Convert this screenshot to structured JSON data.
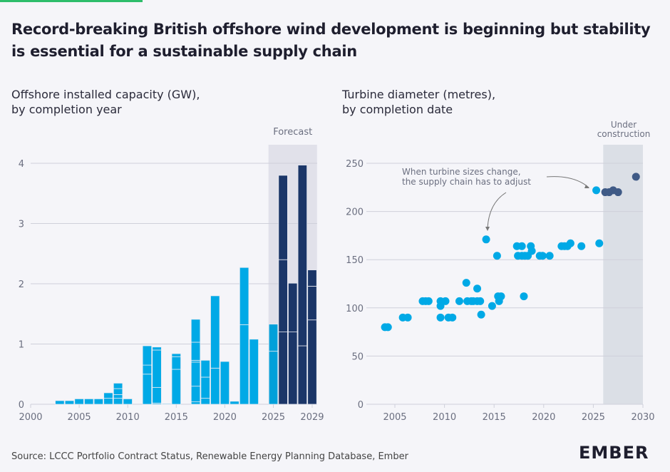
{
  "title": "Record-breaking British offshore wind development is beginning but stability is essential for a sustainable supply chain",
  "source": "Source: LCCC Portfolio Contract Status, Renewable Energy Planning Database, Ember",
  "logo": "EMBER",
  "colors": {
    "operational": "#00a9e6",
    "forecast": "#1b3668",
    "forecast_point": "#3f5a86",
    "shade": "#e1e1ea",
    "shade2": "#dbdfe6",
    "grid": "#cfd0da",
    "axis_text": "#6b6f80"
  },
  "chart_data": [
    {
      "type": "bar",
      "subtitle_line1": "Offshore installed capacity (GW),",
      "subtitle_line2": "by completion year",
      "annotation": "Forecast",
      "forecast_range": [
        2024.5,
        2029.5
      ],
      "xlim": [
        2000,
        2029.6
      ],
      "ylim": [
        0,
        4.4
      ],
      "yticks": [
        "0",
        "1",
        "2",
        "3",
        "4"
      ],
      "xticks": [
        "2000",
        "2005",
        "2010",
        "2015",
        "2020",
        "2025",
        "2029"
      ],
      "xtick_values": [
        2000,
        2005,
        2010,
        2015,
        2020,
        2025,
        2029
      ],
      "stacked": true,
      "bars": [
        {
          "year": 2003,
          "segments": [
            0.06
          ]
        },
        {
          "year": 2004,
          "segments": [
            0.06
          ]
        },
        {
          "year": 2005,
          "segments": [
            0.09
          ]
        },
        {
          "year": 2006,
          "segments": [
            0.09
          ]
        },
        {
          "year": 2007,
          "segments": [
            0.09
          ]
        },
        {
          "year": 2008,
          "segments": [
            0.1,
            0.09
          ]
        },
        {
          "year": 2009,
          "segments": [
            0.1,
            0.06,
            0.1,
            0.09
          ]
        },
        {
          "year": 2010,
          "segments": [
            0.09
          ]
        },
        {
          "year": 2012,
          "segments": [
            0.5,
            0.15,
            0.32
          ]
        },
        {
          "year": 2013,
          "segments": [
            0.02,
            0.26,
            0.62,
            0.05
          ]
        },
        {
          "year": 2014,
          "segments": [
            0.01
          ]
        },
        {
          "year": 2015,
          "segments": [
            0.58,
            0.21,
            0.05
          ]
        },
        {
          "year": 2017,
          "segments": [
            0.04,
            0.26,
            0.4,
            0.03,
            0.3,
            0.38
          ]
        },
        {
          "year": 2018,
          "segments": [
            0.1,
            0.35,
            0.28
          ]
        },
        {
          "year": 2019,
          "segments": [
            0.6,
            1.2
          ]
        },
        {
          "year": 2020,
          "segments": [
            0.71
          ]
        },
        {
          "year": 2021,
          "segments": [
            0.05
          ]
        },
        {
          "year": 2022,
          "segments": [
            1.32,
            0.95
          ]
        },
        {
          "year": 2023,
          "segments": [
            1.08
          ]
        },
        {
          "year": 2025,
          "segments": [
            0.88,
            0.45
          ]
        },
        {
          "year": 2026,
          "segments": [
            1.2,
            1.2,
            1.4
          ],
          "forecast": true
        },
        {
          "year": 2027,
          "segments": [
            1.2,
            0.81
          ],
          "forecast": true
        },
        {
          "year": 2028,
          "segments": [
            0.97,
            3.0
          ],
          "forecast": true
        },
        {
          "year": 2029,
          "segments": [
            1.4,
            0.56,
            0.27
          ],
          "forecast": true
        }
      ]
    },
    {
      "type": "scatter",
      "subtitle_line1": "Turbine diameter (metres),",
      "subtitle_line2": "by completion date",
      "annotation_line1": "Under",
      "annotation_line2": "construction",
      "callout_line1": "When turbine sizes change,",
      "callout_line2": "the supply chain has to adjust",
      "construction_range": [
        2026,
        2030
      ],
      "xlim": [
        2002,
        2030
      ],
      "ylim": [
        0,
        260
      ],
      "yticks": [
        "0",
        "50",
        "100",
        "150",
        "200",
        "250"
      ],
      "xticks": [
        "2005",
        "2010",
        "2015",
        "2020",
        "2025",
        "2030"
      ],
      "points": [
        [
          2004,
          80
        ],
        [
          2004.3,
          80
        ],
        [
          2005.8,
          90
        ],
        [
          2006.3,
          90
        ],
        [
          2007.8,
          107
        ],
        [
          2008.1,
          107
        ],
        [
          2008.4,
          107
        ],
        [
          2009.6,
          107
        ],
        [
          2009.6,
          102
        ],
        [
          2009.6,
          90
        ],
        [
          2010.1,
          107
        ],
        [
          2010.4,
          90
        ],
        [
          2010.8,
          90
        ],
        [
          2011.5,
          107
        ],
        [
          2012.2,
          126
        ],
        [
          2012.3,
          107
        ],
        [
          2012.7,
          107
        ],
        [
          2012.9,
          107
        ],
        [
          2013.3,
          120
        ],
        [
          2013.3,
          107
        ],
        [
          2013.6,
          107
        ],
        [
          2013.7,
          93
        ],
        [
          2014.2,
          171
        ],
        [
          2014.8,
          102
        ],
        [
          2015.3,
          154
        ],
        [
          2015.4,
          112
        ],
        [
          2015.5,
          107
        ],
        [
          2015.7,
          112
        ],
        [
          2017.3,
          164
        ],
        [
          2017.4,
          154
        ],
        [
          2017.8,
          164
        ],
        [
          2017.8,
          154
        ],
        [
          2018,
          112
        ],
        [
          2018.1,
          154
        ],
        [
          2018.4,
          154
        ],
        [
          2018.7,
          164
        ],
        [
          2018.8,
          159
        ],
        [
          2019.6,
          154
        ],
        [
          2019.9,
          154
        ],
        [
          2020.6,
          154
        ],
        [
          2021.8,
          164
        ],
        [
          2022.1,
          164
        ],
        [
          2022.4,
          164
        ],
        [
          2022.7,
          167
        ],
        [
          2023.8,
          164
        ],
        [
          2025.3,
          222
        ],
        [
          2025.6,
          167
        ]
      ],
      "construction_points": [
        [
          2026.2,
          220
        ],
        [
          2026.6,
          220
        ],
        [
          2027,
          222
        ],
        [
          2027.5,
          220
        ],
        [
          2029.3,
          236
        ]
      ]
    }
  ]
}
